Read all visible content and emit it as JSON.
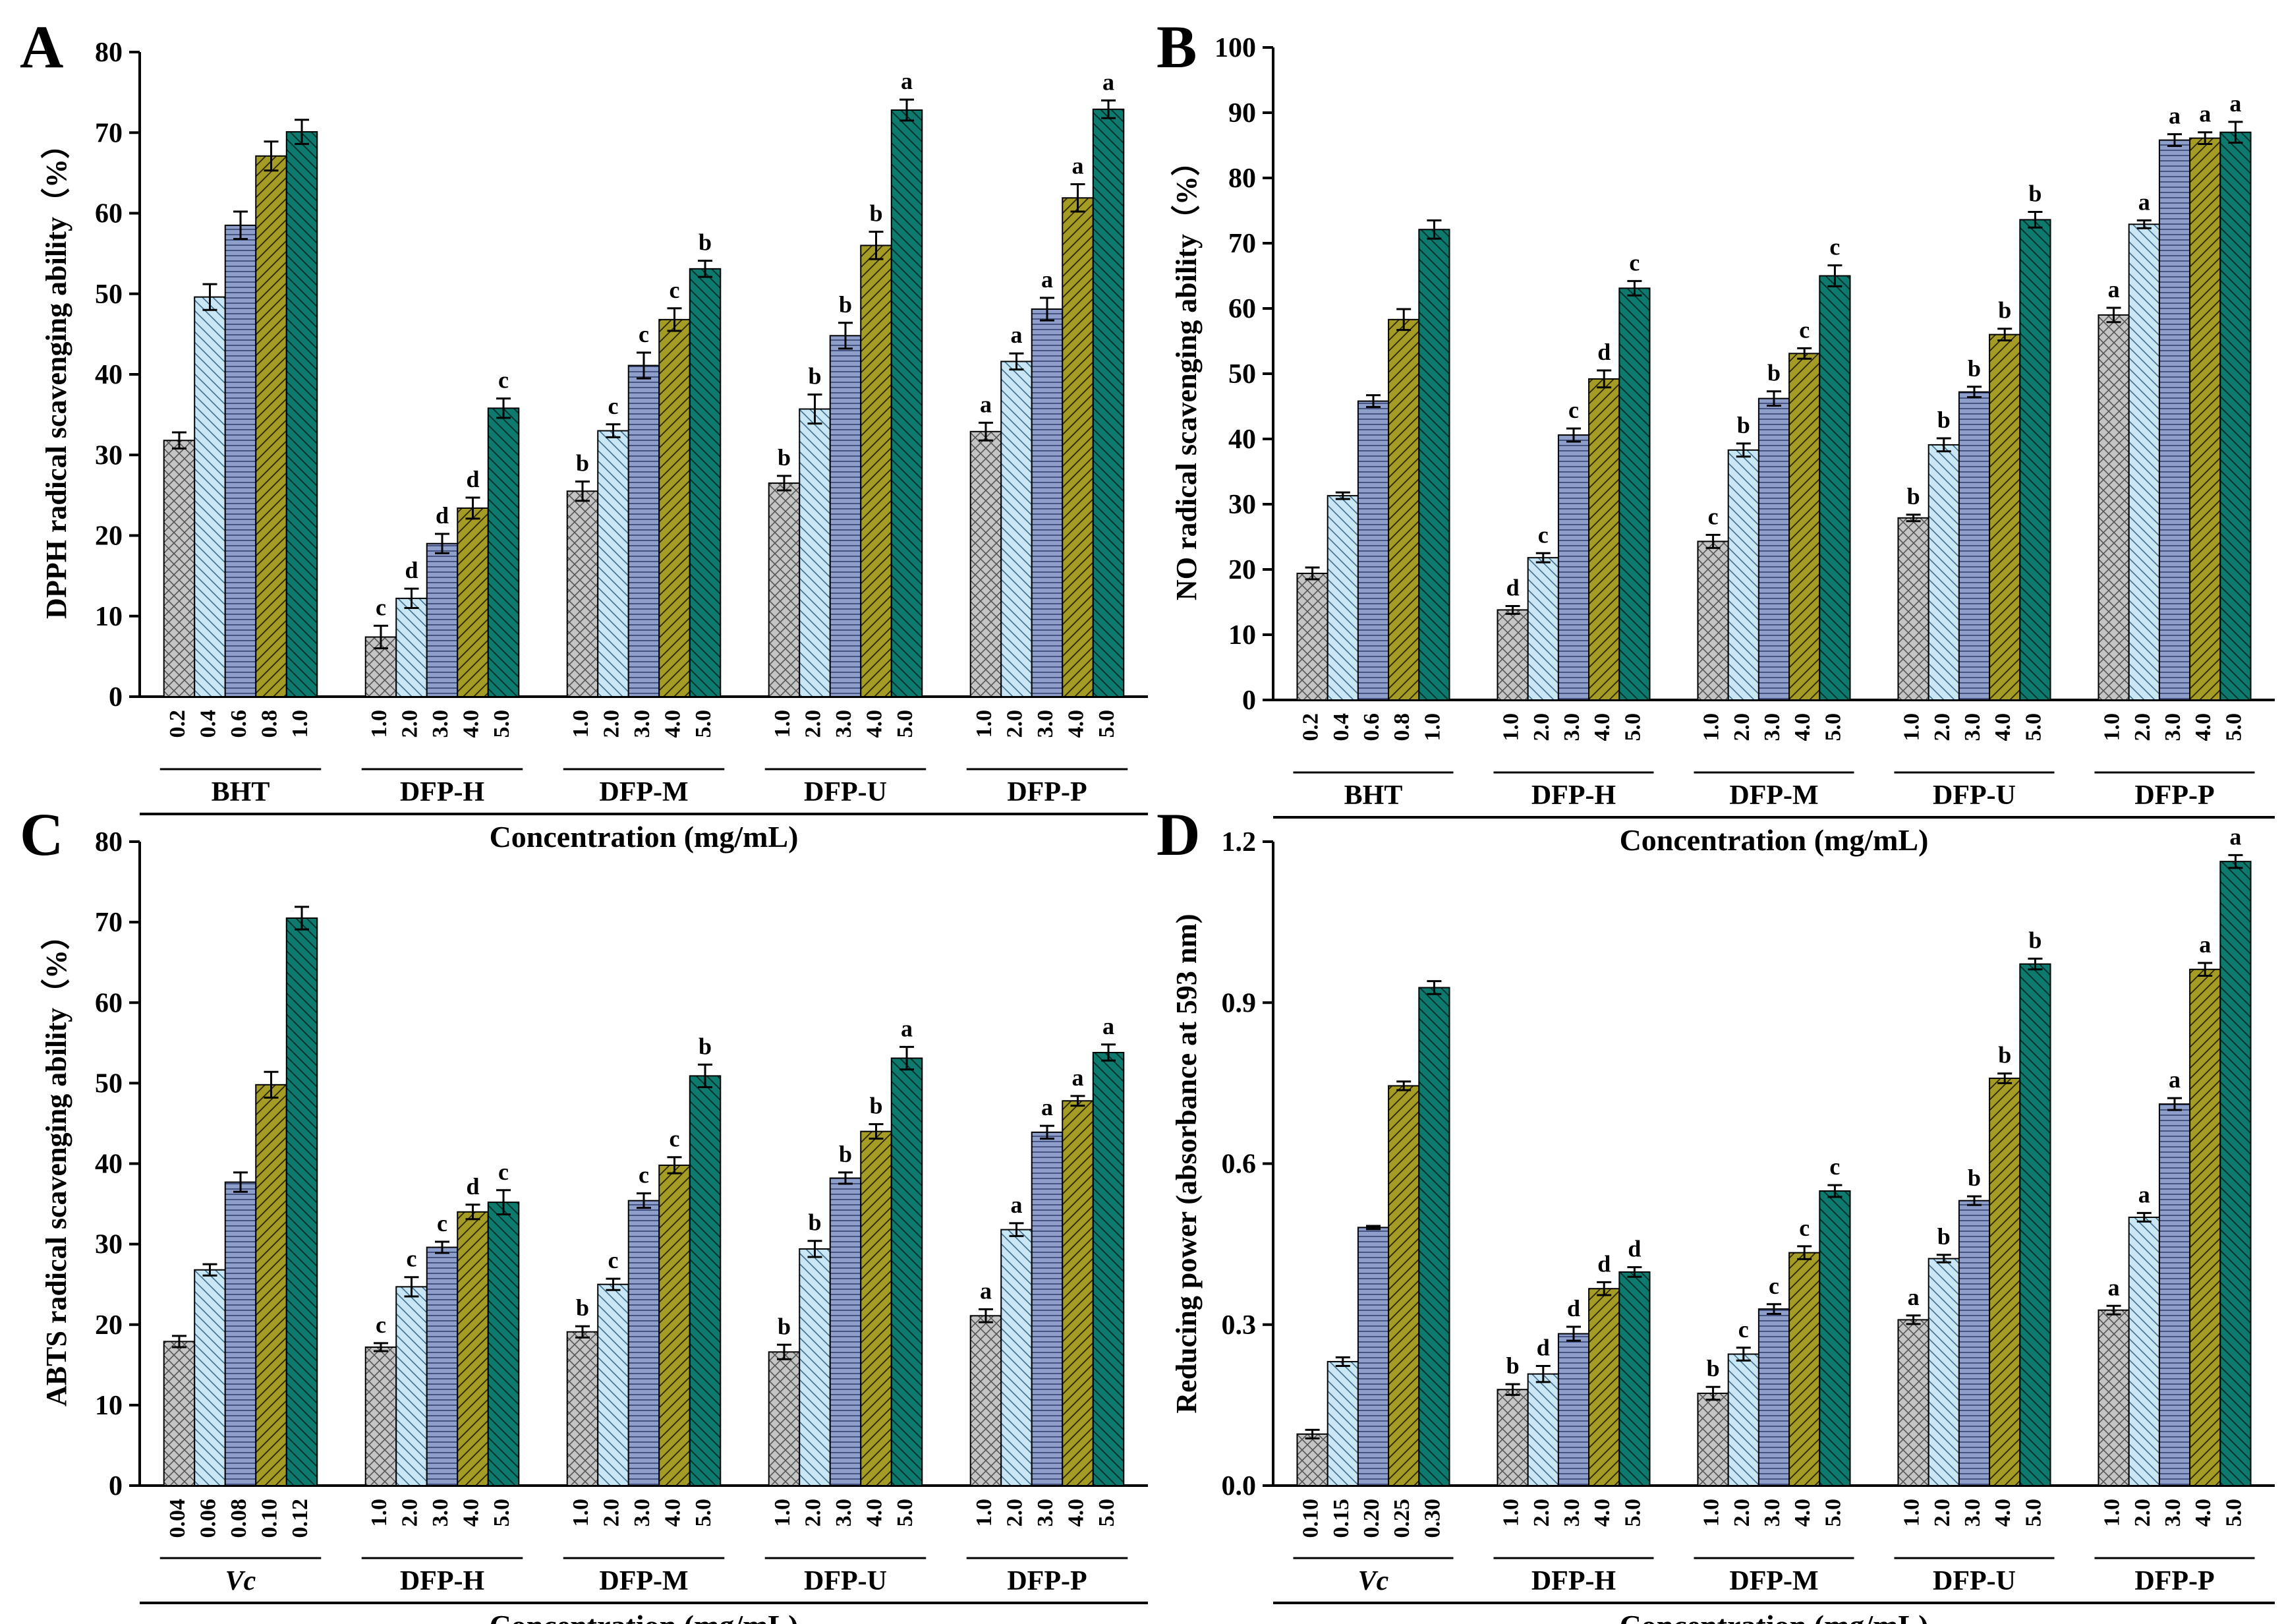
{
  "figure": {
    "xlabel": "Concentration (mg/mL)",
    "colors": [
      "#c4c4c4",
      "#c9e6f5",
      "#8f9fcc",
      "#a59c26",
      "#0e7a6e"
    ]
  },
  "chart_data": [
    {
      "panel": "A",
      "type": "bar",
      "ylabel": "DPPH radical scavenging ability（%）",
      "xlabel": "Concentration (mg/mL)",
      "ylim": [
        0,
        80
      ],
      "yticks": [
        "0",
        "10",
        "20",
        "30",
        "40",
        "50",
        "60",
        "70",
        "80"
      ],
      "groups": [
        {
          "name": "BHT",
          "italic": false,
          "concentrations": [
            "0.2",
            "0.4",
            "0.6",
            "0.8",
            "1.0"
          ],
          "values": [
            31.8,
            49.6,
            58.5,
            67.1,
            70.1
          ],
          "errors": [
            1.0,
            1.6,
            1.7,
            1.8,
            1.5
          ],
          "letters": [
            "",
            "",
            "",
            "",
            ""
          ]
        },
        {
          "name": "DFP-H",
          "italic": false,
          "concentrations": [
            "1.0",
            "2.0",
            "3.0",
            "4.0",
            "5.0"
          ],
          "values": [
            7.4,
            12.2,
            19.0,
            23.4,
            35.8
          ],
          "errors": [
            1.4,
            1.2,
            1.2,
            1.3,
            1.2
          ],
          "letters": [
            "c",
            "d",
            "d",
            "d",
            "c"
          ]
        },
        {
          "name": "DFP-M",
          "italic": false,
          "concentrations": [
            "1.0",
            "2.0",
            "3.0",
            "4.0",
            "5.0"
          ],
          "values": [
            25.5,
            33.0,
            41.1,
            46.8,
            53.1
          ],
          "errors": [
            1.2,
            0.8,
            1.6,
            1.4,
            1.0
          ],
          "letters": [
            "b",
            "c",
            "c",
            "c",
            "b"
          ]
        },
        {
          "name": "DFP-U",
          "italic": false,
          "concentrations": [
            "1.0",
            "2.0",
            "3.0",
            "4.0",
            "5.0"
          ],
          "values": [
            26.5,
            35.7,
            44.8,
            56.0,
            72.8
          ],
          "errors": [
            0.9,
            1.8,
            1.6,
            1.7,
            1.3
          ],
          "letters": [
            "b",
            "b",
            "b",
            "b",
            "a"
          ]
        },
        {
          "name": "DFP-P",
          "italic": false,
          "concentrations": [
            "1.0",
            "2.0",
            "3.0",
            "4.0",
            "5.0"
          ],
          "values": [
            32.9,
            41.6,
            48.1,
            61.9,
            72.9
          ],
          "errors": [
            1.1,
            1.0,
            1.4,
            1.7,
            1.1
          ],
          "letters": [
            "a",
            "a",
            "a",
            "a",
            "a"
          ]
        }
      ]
    },
    {
      "panel": "B",
      "type": "bar",
      "ylabel": "NO radical scavenging ability（%）",
      "xlabel": "Concentration (mg/mL)",
      "ylim": [
        0,
        100
      ],
      "yticks": [
        "0",
        "10",
        "20",
        "30",
        "40",
        "50",
        "60",
        "70",
        "80",
        "90",
        "100"
      ],
      "groups": [
        {
          "name": "BHT",
          "italic": false,
          "concentrations": [
            "0.2",
            "0.4",
            "0.6",
            "0.8",
            "1.0"
          ],
          "values": [
            19.4,
            31.3,
            45.8,
            58.3,
            72.1
          ],
          "errors": [
            0.9,
            0.5,
            0.9,
            1.6,
            1.4
          ],
          "letters": [
            "",
            "",
            "",
            "",
            ""
          ]
        },
        {
          "name": "DFP-H",
          "italic": false,
          "concentrations": [
            "1.0",
            "2.0",
            "3.0",
            "4.0",
            "5.0"
          ],
          "values": [
            13.8,
            21.8,
            40.6,
            49.2,
            63.1
          ],
          "errors": [
            0.6,
            0.7,
            1.0,
            1.3,
            1.1
          ],
          "letters": [
            "d",
            "c",
            "c",
            "d",
            "c"
          ]
        },
        {
          "name": "DFP-M",
          "italic": false,
          "concentrations": [
            "1.0",
            "2.0",
            "3.0",
            "4.0",
            "5.0"
          ],
          "values": [
            24.3,
            38.3,
            46.2,
            53.1,
            65.0
          ],
          "errors": [
            1.0,
            1.0,
            1.1,
            0.8,
            1.6
          ],
          "letters": [
            "c",
            "b",
            "b",
            "c",
            "c"
          ]
        },
        {
          "name": "DFP-U",
          "italic": false,
          "concentrations": [
            "1.0",
            "2.0",
            "3.0",
            "4.0",
            "5.0"
          ],
          "values": [
            27.9,
            39.1,
            47.2,
            56.0,
            73.6
          ],
          "errors": [
            0.5,
            1.0,
            0.8,
            0.9,
            1.2
          ],
          "letters": [
            "b",
            "b",
            "b",
            "b",
            "b"
          ]
        },
        {
          "name": "DFP-P",
          "italic": false,
          "concentrations": [
            "1.0",
            "2.0",
            "3.0",
            "4.0",
            "5.0"
          ],
          "values": [
            59.0,
            72.9,
            85.8,
            86.1,
            87.0
          ],
          "errors": [
            1.1,
            0.6,
            0.9,
            0.9,
            1.6
          ],
          "letters": [
            "a",
            "a",
            "a",
            "a",
            "a"
          ]
        }
      ]
    },
    {
      "panel": "C",
      "type": "bar",
      "ylabel": "ABTS radical scavenging ability（%）",
      "xlabel": "Concentration (mg/mL)",
      "ylim": [
        0,
        80
      ],
      "yticks": [
        "0",
        "10",
        "20",
        "30",
        "40",
        "50",
        "60",
        "70",
        "80"
      ],
      "groups": [
        {
          "name": "Vc",
          "italic": true,
          "concentrations": [
            "0.04",
            "0.06",
            "0.08",
            "0.10",
            "0.12"
          ],
          "values": [
            17.9,
            26.8,
            37.7,
            49.8,
            70.5
          ],
          "errors": [
            0.7,
            0.7,
            1.2,
            1.6,
            1.4
          ],
          "letters": [
            "",
            "",
            "",
            "",
            ""
          ]
        },
        {
          "name": "DFP-H",
          "italic": false,
          "concentrations": [
            "1.0",
            "2.0",
            "3.0",
            "4.0",
            "5.0"
          ],
          "values": [
            17.2,
            24.7,
            29.6,
            34.0,
            35.2
          ],
          "errors": [
            0.5,
            1.2,
            0.7,
            0.9,
            1.5
          ],
          "letters": [
            "c",
            "c",
            "c",
            "d",
            "c"
          ]
        },
        {
          "name": "DFP-M",
          "italic": false,
          "concentrations": [
            "1.0",
            "2.0",
            "3.0",
            "4.0",
            "5.0"
          ],
          "values": [
            19.1,
            25.0,
            35.4,
            39.8,
            50.9
          ],
          "errors": [
            0.7,
            0.7,
            0.9,
            1.0,
            1.4
          ],
          "letters": [
            "b",
            "c",
            "c",
            "c",
            "b"
          ]
        },
        {
          "name": "DFP-U",
          "italic": false,
          "concentrations": [
            "1.0",
            "2.0",
            "3.0",
            "4.0",
            "5.0"
          ],
          "values": [
            16.6,
            29.4,
            38.2,
            44.0,
            53.1
          ],
          "errors": [
            0.9,
            1.0,
            0.7,
            0.9,
            1.4
          ],
          "letters": [
            "b",
            "b",
            "b",
            "b",
            "a"
          ]
        },
        {
          "name": "DFP-P",
          "italic": false,
          "concentrations": [
            "1.0",
            "2.0",
            "3.0",
            "4.0",
            "5.0"
          ],
          "values": [
            21.1,
            31.8,
            43.9,
            47.8,
            53.8
          ],
          "errors": [
            0.8,
            0.8,
            0.8,
            0.6,
            1.0
          ],
          "letters": [
            "a",
            "a",
            "a",
            "a",
            "a"
          ]
        }
      ]
    },
    {
      "panel": "D",
      "type": "bar",
      "ylabel": "Reducing power (absorbance at 593 nm)",
      "xlabel": "Concentration (mg/mL)",
      "ylim": [
        0,
        1.2
      ],
      "yticks": [
        "0.0",
        "0.3",
        "0.6",
        "0.9",
        "1.2"
      ],
      "groups": [
        {
          "name": "Vc",
          "italic": true,
          "concentrations": [
            "0.10",
            "0.15",
            "0.20",
            "0.25",
            "0.30"
          ],
          "values": [
            0.096,
            0.231,
            0.481,
            0.745,
            0.928
          ],
          "errors": [
            0.008,
            0.008,
            0.003,
            0.008,
            0.012
          ],
          "letters": [
            "",
            "",
            "",
            "",
            ""
          ]
        },
        {
          "name": "DFP-H",
          "italic": false,
          "concentrations": [
            "1.0",
            "2.0",
            "3.0",
            "4.0",
            "5.0"
          ],
          "values": [
            0.179,
            0.208,
            0.283,
            0.367,
            0.398
          ],
          "errors": [
            0.01,
            0.015,
            0.013,
            0.012,
            0.009
          ],
          "letters": [
            "b",
            "d",
            "d",
            "d",
            "d"
          ]
        },
        {
          "name": "DFP-M",
          "italic": false,
          "concentrations": [
            "1.0",
            "2.0",
            "3.0",
            "4.0",
            "5.0"
          ],
          "values": [
            0.172,
            0.245,
            0.329,
            0.434,
            0.549
          ],
          "errors": [
            0.012,
            0.012,
            0.009,
            0.012,
            0.011
          ],
          "letters": [
            "b",
            "c",
            "c",
            "c",
            "c"
          ]
        },
        {
          "name": "DFP-U",
          "italic": false,
          "concentrations": [
            "1.0",
            "2.0",
            "3.0",
            "4.0",
            "5.0"
          ],
          "values": [
            0.309,
            0.423,
            0.531,
            0.759,
            0.972
          ],
          "errors": [
            0.008,
            0.007,
            0.008,
            0.009,
            0.01
          ],
          "letters": [
            "a",
            "b",
            "b",
            "b",
            "b"
          ]
        },
        {
          "name": "DFP-P",
          "italic": false,
          "concentrations": [
            "1.0",
            "2.0",
            "3.0",
            "4.0",
            "5.0"
          ],
          "values": [
            0.327,
            0.5,
            0.711,
            0.962,
            1.163
          ],
          "errors": [
            0.008,
            0.008,
            0.011,
            0.012,
            0.012
          ],
          "letters": [
            "a",
            "a",
            "a",
            "a",
            "a"
          ]
        }
      ]
    }
  ]
}
